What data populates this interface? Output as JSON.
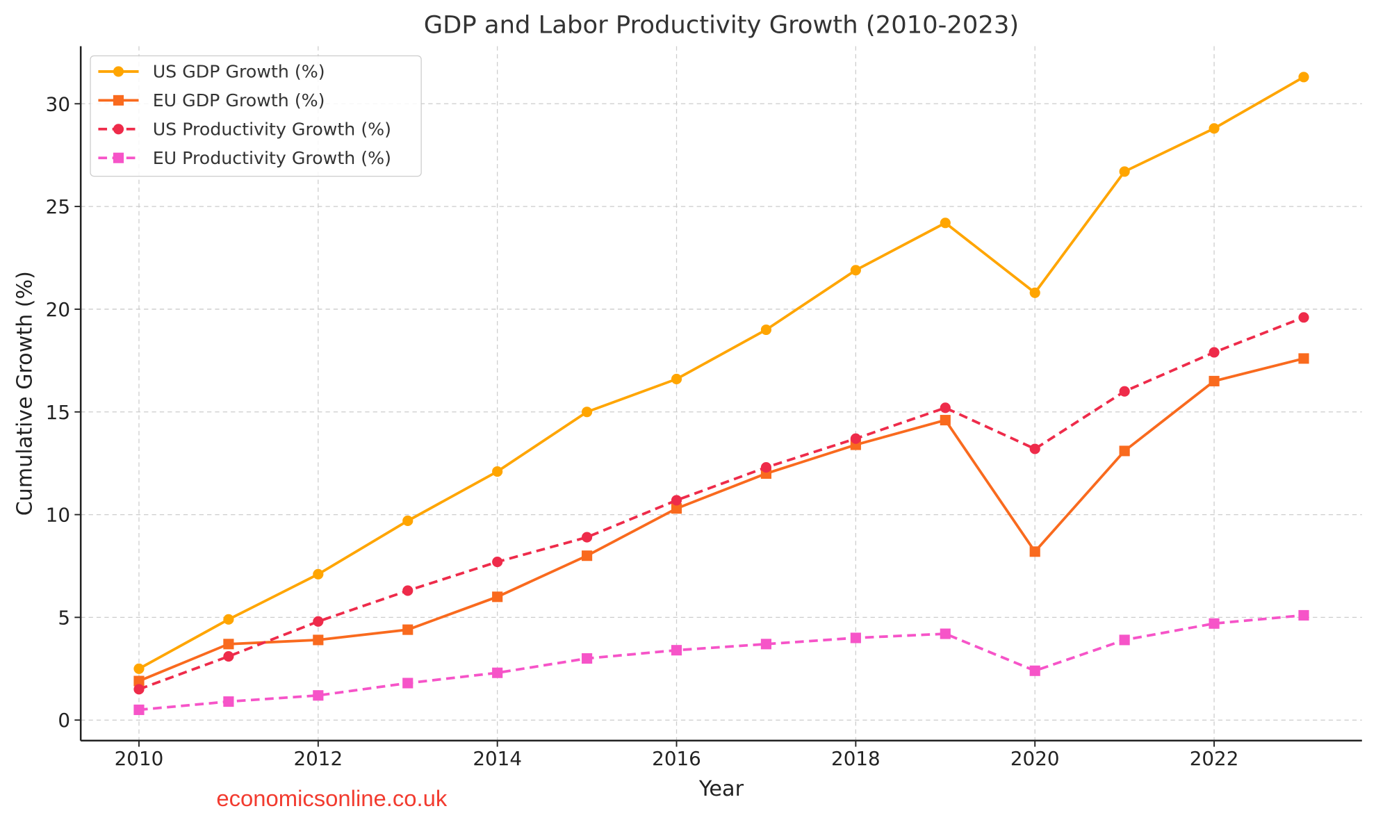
{
  "chart_data": {
    "type": "line",
    "title": "GDP and Labor Productivity Growth (2010-2023)",
    "xlabel": "Year",
    "ylabel": "Cumulative Growth (%)",
    "x": [
      2010,
      2011,
      2012,
      2013,
      2014,
      2015,
      2016,
      2017,
      2018,
      2019,
      2020,
      2021,
      2022,
      2023
    ],
    "xticks": [
      "2010",
      "2012",
      "2014",
      "2016",
      "2018",
      "2020",
      "2022"
    ],
    "yticks": [
      "0",
      "5",
      "10",
      "15",
      "20",
      "25",
      "30"
    ],
    "xlim": [
      2009.35,
      2023.65
    ],
    "ylim": [
      -1.0,
      32.8
    ],
    "grid": true,
    "legend_position": "top-left",
    "series": [
      {
        "name": "US GDP Growth (%)",
        "color": "#FFA500",
        "marker": "circle",
        "dashed": false,
        "values": [
          2.5,
          4.9,
          7.1,
          9.7,
          12.1,
          15.0,
          16.6,
          19.0,
          21.9,
          24.2,
          20.8,
          26.7,
          28.8,
          31.3
        ]
      },
      {
        "name": "EU GDP Growth (%)",
        "color": "#F96A1E",
        "marker": "square",
        "dashed": false,
        "values": [
          1.9,
          3.7,
          3.9,
          4.4,
          6.0,
          8.0,
          10.3,
          12.0,
          13.4,
          14.6,
          8.2,
          13.1,
          16.5,
          17.6
        ]
      },
      {
        "name": "US Productivity Growth (%)",
        "color": "#EE2B4A",
        "marker": "circle",
        "dashed": true,
        "values": [
          1.5,
          3.1,
          4.8,
          6.3,
          7.7,
          8.9,
          10.7,
          12.3,
          13.7,
          15.2,
          13.2,
          16.0,
          17.9,
          19.6
        ]
      },
      {
        "name": "EU Productivity Growth (%)",
        "color": "#F654C8",
        "marker": "square",
        "dashed": true,
        "values": [
          0.5,
          0.9,
          1.2,
          1.8,
          2.3,
          3.0,
          3.4,
          3.7,
          4.0,
          4.2,
          2.4,
          3.9,
          4.7,
          5.1
        ]
      }
    ]
  },
  "watermark": "economicsonline.co.uk"
}
